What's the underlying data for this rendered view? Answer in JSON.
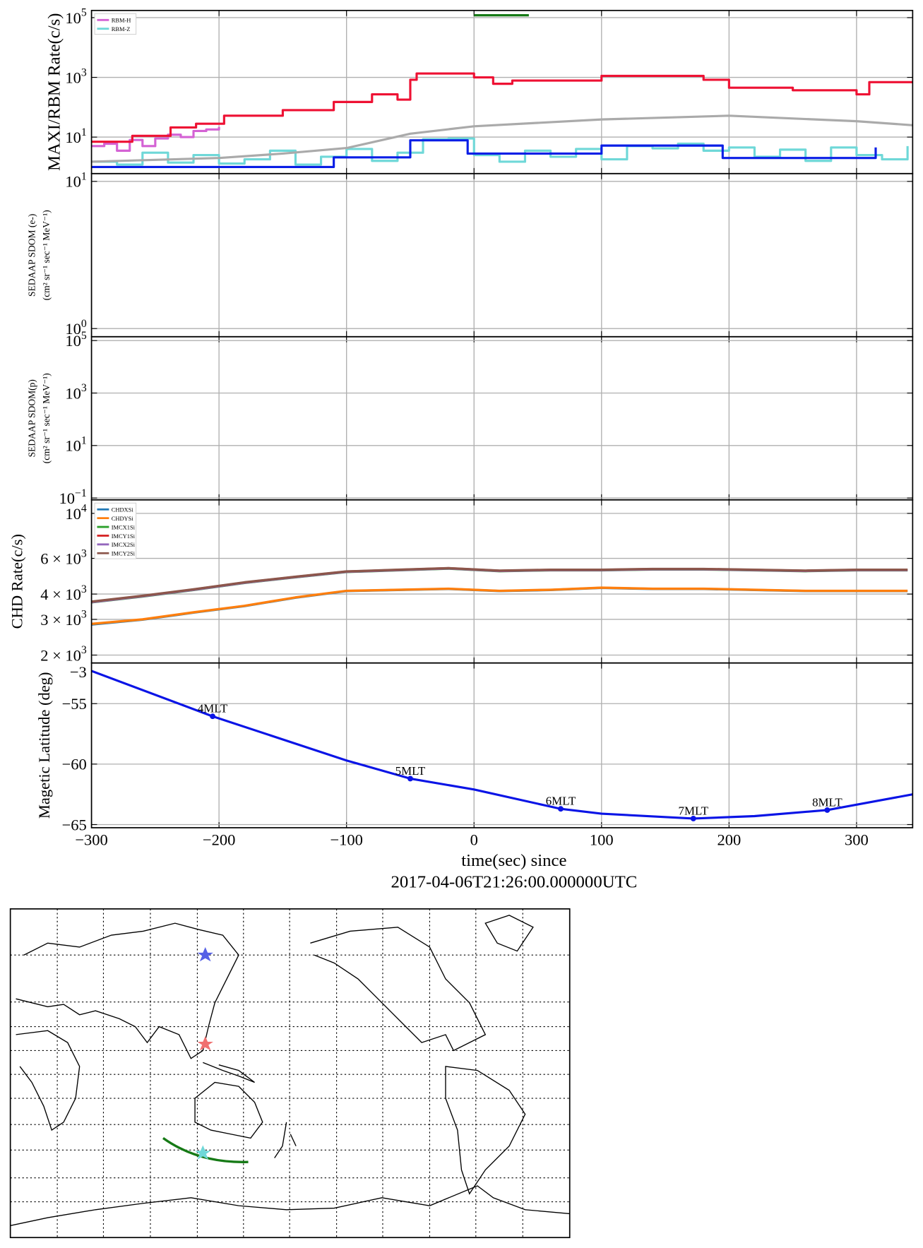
{
  "chart_data": [
    {
      "type": "line",
      "log_y": true,
      "grid": true,
      "legend": "upper left",
      "ylabel": "MAXI/RBM Rate(c/s)",
      "xlim": [
        -300,
        344
      ],
      "xticks": [
        -300,
        -200,
        -100,
        0,
        100,
        200,
        300
      ],
      "ylim": [
        0.6,
        174000
      ],
      "yticks": [
        {
          "value": 10,
          "label": "10^1"
        },
        {
          "value": 1000,
          "label": "10^3"
        },
        {
          "value": 100000,
          "label": "10^5"
        }
      ],
      "series": [
        {
          "name": "RBM-H",
          "color": "#d462d4",
          "drawstyle": "steps-post",
          "x": [
            -300,
            -290,
            -280,
            -270,
            -260,
            -250,
            -240,
            -230,
            -220,
            -210,
            -200
          ],
          "values": [
            5,
            6,
            3.5,
            8,
            5,
            9,
            12,
            10,
            16,
            18,
            22
          ]
        },
        {
          "name": "RBM-Z",
          "color": "#6fd8d8",
          "drawstyle": "steps-post",
          "x": [
            -300,
            -280,
            -260,
            -240,
            -220,
            -200,
            -180,
            -160,
            -140,
            -120,
            -100,
            -80,
            -60,
            -40,
            -20,
            0,
            20,
            40,
            60,
            80,
            100,
            120,
            140,
            160,
            180,
            200,
            220,
            240,
            260,
            280,
            300,
            320,
            340
          ],
          "values": [
            1.5,
            1.2,
            3,
            1.4,
            2.5,
            1.3,
            1.8,
            3.5,
            1.2,
            2.2,
            4,
            1.6,
            3,
            8.5,
            9,
            2.5,
            1.5,
            3.5,
            2.2,
            4,
            1.8,
            5,
            4.2,
            6,
            3.5,
            4.5,
            2.2,
            3.8,
            1.6,
            4.5,
            2.5,
            1.8,
            5
          ]
        },
        {
          "color": "#ee1133",
          "drawstyle": "steps-post",
          "x": [
            -300,
            -268,
            -238,
            -218,
            -196,
            -150,
            -110,
            -80,
            -60,
            -50,
            -45,
            0,
            15,
            30,
            100,
            180,
            200,
            250,
            300,
            310,
            344
          ],
          "values": [
            7,
            11,
            21,
            28,
            52,
            80,
            150,
            270,
            180,
            830,
            1350,
            1000,
            610,
            780,
            1120,
            830,
            450,
            370,
            270,
            690,
            690
          ]
        },
        {
          "color": "#0a1ee6",
          "drawstyle": "steps-post",
          "x": [
            -300,
            -110,
            -50,
            -5,
            100,
            195,
            315
          ],
          "values": [
            1,
            2.1,
            7.8,
            2.8,
            5.2,
            2.0,
            4.5
          ]
        },
        {
          "color": "#aaaaaa",
          "x": [
            -300,
            -200,
            -150,
            -100,
            -50,
            0,
            100,
            200,
            300,
            344
          ],
          "values": [
            1.5,
            2.0,
            2.8,
            4.3,
            13,
            23,
            39,
            52,
            34,
            25
          ]
        },
        {
          "color": "#167a16",
          "x": [
            0,
            43
          ],
          "values": [
            120000,
            120000
          ]
        }
      ]
    },
    {
      "type": "line",
      "log_y": true,
      "grid": true,
      "ylabel": [
        "SEDAAP SDOM (e-)",
        "(cm² sr⁻¹ sec⁻¹ MeV⁻¹)"
      ],
      "xlim": [
        -300,
        344
      ],
      "xticks": [
        -300,
        -200,
        -100,
        0,
        100,
        200,
        300
      ],
      "ylim": [
        0.88,
        11.3
      ],
      "yticks": [
        {
          "value": 1,
          "label": "10^0"
        },
        {
          "value": 10,
          "label": "10^1"
        }
      ],
      "series": []
    },
    {
      "type": "line",
      "log_y": true,
      "grid": true,
      "ylabel": [
        "SEDAAP SDOM(p)",
        "(cm² sr⁻¹ sec⁻¹ MeV⁻¹)"
      ],
      "xlim": [
        -300,
        344
      ],
      "xticks": [
        -300,
        -200,
        -100,
        0,
        100,
        200,
        300
      ],
      "ylim": [
        0.085,
        140000
      ],
      "yticks": [
        {
          "value": 0.1,
          "label": "10^−1"
        },
        {
          "value": 10,
          "label": "10^1"
        },
        {
          "value": 1000,
          "label": "10^3"
        },
        {
          "value": 100000,
          "label": "10^5"
        }
      ],
      "series": []
    },
    {
      "type": "line",
      "log_y": true,
      "grid": true,
      "legend": "upper left",
      "ylabel": "CHD Rate(c/s)",
      "xlim": [
        -300,
        344
      ],
      "xticks": [
        -300,
        -200,
        -100,
        0,
        100,
        200,
        300
      ],
      "ylim": [
        1828,
        11660
      ],
      "yticks": [
        {
          "value": 2000,
          "label": "2 × 10^3"
        },
        {
          "value": 3000,
          "label": "3 × 10^3"
        },
        {
          "value": 4000,
          "label": "4 × 10^3"
        },
        {
          "value": 6000,
          "label": "6 × 10^3"
        },
        {
          "value": 10000,
          "label": "10^4"
        }
      ],
      "series": [
        {
          "name": "CHDXSi",
          "color": "#1f77b4",
          "x": [
            -300,
            -260,
            -220,
            -180,
            -140,
            -100,
            -60,
            -20,
            20,
            60,
            100,
            140,
            180,
            220,
            260,
            300,
            340
          ],
          "values": [
            2830,
            2990,
            3240,
            3490,
            3840,
            4140,
            4190,
            4240,
            4140,
            4190,
            4290,
            4240,
            4240,
            4190,
            4140,
            4140,
            4140
          ]
        },
        {
          "name": "CHDYSi",
          "color": "#ff7f0e",
          "x": [
            -300,
            -260,
            -220,
            -180,
            -140,
            -100,
            -60,
            -20,
            20,
            60,
            100,
            140,
            180,
            220,
            260,
            300,
            340
          ],
          "values": [
            2850,
            3000,
            3250,
            3500,
            3850,
            4150,
            4200,
            4250,
            4150,
            4200,
            4300,
            4250,
            4250,
            4200,
            4150,
            4150,
            4150
          ]
        },
        {
          "name": "IMCX1Si",
          "color": "#2ca02c",
          "x": [
            -300,
            -260,
            -220,
            -180,
            -140,
            -100,
            -60,
            -20,
            20,
            60,
            100,
            140,
            180,
            220,
            260,
            300,
            340
          ],
          "values": [
            3640,
            3890,
            4190,
            4540,
            4840,
            5140,
            5240,
            5340,
            5190,
            5240,
            5240,
            5290,
            5290,
            5240,
            5190,
            5240,
            5240
          ]
        },
        {
          "name": "IMCY1Si",
          "color": "#d62728",
          "x": [
            -300,
            -260,
            -220,
            -180,
            -140,
            -100,
            -60,
            -20,
            20,
            60,
            100,
            140,
            180,
            220,
            260,
            300,
            340
          ],
          "values": [
            3660,
            3910,
            4210,
            4560,
            4860,
            5160,
            5260,
            5360,
            5210,
            5260,
            5260,
            5310,
            5310,
            5260,
            5210,
            5260,
            5260
          ]
        },
        {
          "name": "IMCX2Si",
          "color": "#9467bd",
          "x": [
            -300,
            -260,
            -220,
            -180,
            -140,
            -100,
            -60,
            -20,
            20,
            60,
            100,
            140,
            180,
            220,
            260,
            300,
            340
          ],
          "values": [
            3650,
            3900,
            4200,
            4550,
            4850,
            5150,
            5250,
            5350,
            5200,
            5250,
            5250,
            5300,
            5300,
            5250,
            5200,
            5250,
            5250
          ]
        },
        {
          "name": "IMCY2Si",
          "color": "#8c564b",
          "x": [
            -300,
            -260,
            -220,
            -180,
            -140,
            -100,
            -60,
            -20,
            20,
            60,
            100,
            140,
            180,
            220,
            260,
            300,
            340
          ],
          "values": [
            3670,
            3920,
            4220,
            4570,
            4870,
            5170,
            5270,
            5370,
            5220,
            5270,
            5270,
            5320,
            5320,
            5270,
            5220,
            5270,
            5270
          ]
        }
      ]
    },
    {
      "type": "line",
      "log_y": false,
      "grid": true,
      "ylabel": "Magetic Latitude  (deg)",
      "offset_text": "−3",
      "xlabel": [
        "time(sec) since",
        "2017-04-06T21:26:00.000000UTC"
      ],
      "xlim": [
        -300,
        344
      ],
      "xticks": [
        {
          "value": -300,
          "label": "−300"
        },
        {
          "value": -200,
          "label": "−200"
        },
        {
          "value": -100,
          "label": "−100"
        },
        0,
        100,
        200,
        300
      ],
      "ylim": [
        -65.26,
        -51.64
      ],
      "yticks": [
        {
          "value": -65,
          "label": "−65"
        },
        {
          "value": -60,
          "label": "−60"
        },
        {
          "value": -55,
          "label": "−55"
        }
      ],
      "series": [
        {
          "color": "#0a14e6",
          "x": [
            -300,
            -205,
            -100,
            -50,
            0,
            68,
            100,
            172,
            220,
            277,
            344
          ],
          "values": [
            -52.3,
            -56.05,
            -59.7,
            -61.2,
            -62.1,
            -63.7,
            -64.1,
            -64.5,
            -64.3,
            -63.8,
            -62.5
          ]
        }
      ],
      "points": [
        {
          "x": -205,
          "y": -56.05,
          "label": "4MLT"
        },
        {
          "x": -50,
          "y": -61.2,
          "label": "5MLT"
        },
        {
          "x": 68,
          "y": -63.7,
          "label": "6MLT"
        },
        {
          "x": 172,
          "y": -64.5,
          "label": "7MLT"
        },
        {
          "x": 277,
          "y": -63.8,
          "label": "8MLT"
        }
      ]
    }
  ]
}
